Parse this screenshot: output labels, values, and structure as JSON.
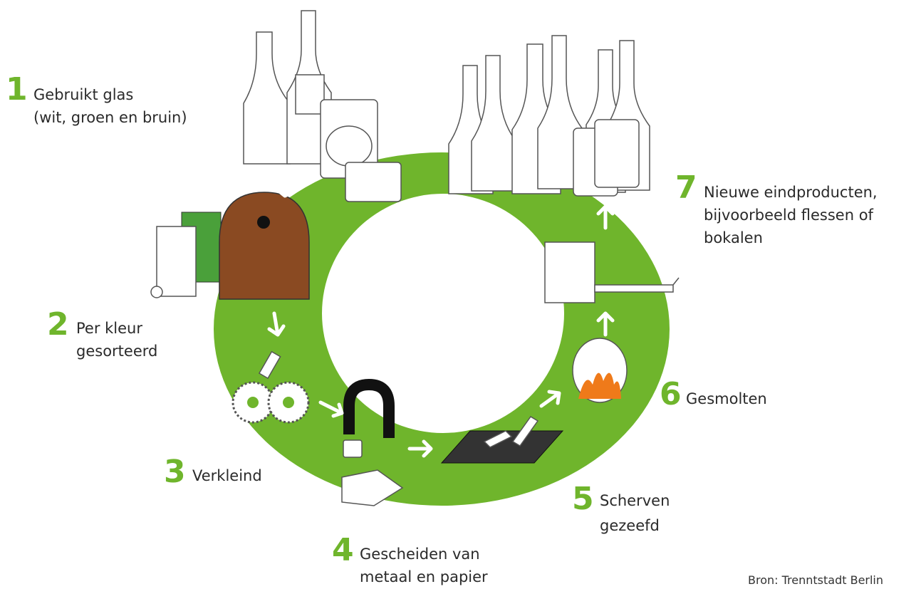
{
  "steps": [
    {
      "number": 1,
      "label": [
        "Gebruikt glas",
        "(wit, groen en bruin)"
      ]
    },
    {
      "number": 2,
      "label": [
        "Per kleur",
        "gesorteerd"
      ]
    },
    {
      "number": 3,
      "label": [
        "Verkleind"
      ]
    },
    {
      "number": 4,
      "label": [
        "Gescheiden van",
        "metaal en papier"
      ]
    },
    {
      "number": 5,
      "label": [
        "Scherven",
        "gezeefd"
      ]
    },
    {
      "number": 6,
      "label": [
        "Gesmolten"
      ]
    },
    {
      "number": 7,
      "label": [
        "Nieuwe eindproducten,",
        "bijvoorbeeld flessen of",
        "bokalen"
      ]
    }
  ],
  "source": "Bron: Trenntstadt Berlin"
}
